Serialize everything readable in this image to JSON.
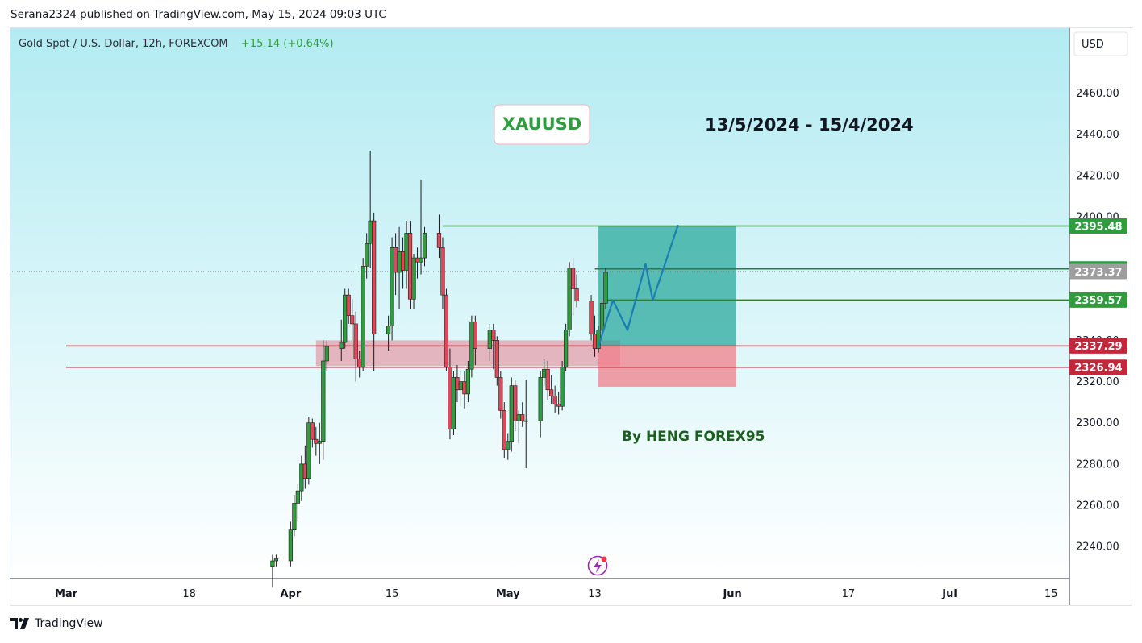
{
  "publisher_line": "Serana2324 published on TradingView.com, May 15, 2024 09:03 UTC",
  "footer": {
    "logo_text": "TradingView",
    "logo_icon": "tradingview-logo-icon"
  },
  "symbol_info": {
    "name": "Gold Spot / U.S. Dollar, 12h, FOREXCOM",
    "change": "+15.14 (+0.64%)"
  },
  "currency_button": "USD",
  "annotations": {
    "ticker_box": "XAUUSD",
    "date_range": "13/5/2024 - 15/4/2024",
    "author": "By HENG FOREX95"
  },
  "colors": {
    "bull": "#2e9c3f",
    "bear": "#e0475b",
    "background_top": "#b2ebf2",
    "background_bottom": "#ffffff",
    "tp_zone": "#26a69a",
    "sl_zone": "#f07f8a",
    "support_zone": "#e57f8e",
    "ticker_text": "#2e9c3f",
    "projection": "#1a7fb0"
  },
  "chart_data": {
    "type": "candlestick",
    "ylim": [
      2220,
      2488
    ],
    "y_ticks": [
      2240,
      2260,
      2280,
      2300,
      2320,
      2340,
      2400,
      2420,
      2440,
      2460
    ],
    "y_tick_labels": [
      "2240.00",
      "2260.00",
      "2280.00",
      "2300.00",
      "2320.00",
      "2340.00",
      "2400.00",
      "2420.00",
      "2440.00",
      "2460.00"
    ],
    "x_ticks": [
      {
        "label": "Mar",
        "date": "2024-03-01"
      },
      {
        "label": "18",
        "date": "2024-03-18"
      },
      {
        "label": "Apr",
        "date": "2024-04-01"
      },
      {
        "label": "15",
        "date": "2024-04-15"
      },
      {
        "label": "May",
        "date": "2024-05-01"
      },
      {
        "label": "13",
        "date": "2024-05-13"
      },
      {
        "label": "Jun",
        "date": "2024-06-01"
      },
      {
        "label": "17",
        "date": "2024-06-17"
      },
      {
        "label": "Jul",
        "date": "2024-07-01"
      },
      {
        "label": "15",
        "date": "2024-07-15"
      }
    ],
    "price_labels": [
      {
        "value": 2395.48,
        "text": "2395.48",
        "color": "#2e9c3f"
      },
      {
        "value": 2374.67,
        "text": "2374.67",
        "color": "#2e9c3f"
      },
      {
        "value": 2373.37,
        "text": "2373.37",
        "color": "#9e9e9e"
      },
      {
        "value": 2359.57,
        "text": "2359.57",
        "color": "#2e9c3f"
      },
      {
        "value": 2337.29,
        "text": "2337.29",
        "color": "#c2283a"
      },
      {
        "value": 2326.94,
        "text": "2326.94",
        "color": "#c2283a"
      }
    ],
    "horizontal_lines": [
      {
        "value": 2395.48,
        "color": "#2e7d32",
        "from_date": "2024-04-22 00:00"
      },
      {
        "value": 2374.67,
        "color": "#2e7d32",
        "from_date": "2024-05-13 00:00"
      },
      {
        "value": 2359.57,
        "color": "#2e7d32",
        "from_date": "2024-05-14 12:00"
      },
      {
        "value": 2337.29,
        "color": "#c2283a",
        "from_date": "2024-03-01"
      },
      {
        "value": 2326.94,
        "color": "#c2283a",
        "from_date": "2024-03-01"
      }
    ],
    "last_price": 2373.37,
    "support_zone": {
      "y_low": 2327.5,
      "y_high": 2340,
      "from_date": "2024-04-04 12:00",
      "to_date": "2024-05-16 12:00"
    },
    "position": {
      "from_date": "2024-05-13 12:00",
      "to_date": "2024-06-01 12:00",
      "entry": 2337.29,
      "target": 2395.48,
      "stop": 2317.5
    },
    "projection": [
      {
        "date": "2024-05-13 12:00",
        "price": 2337.0
      },
      {
        "date": "2024-05-15 12:00",
        "price": 2359.5
      },
      {
        "date": "2024-05-17 12:00",
        "price": 2345.0
      },
      {
        "date": "2024-05-20 00:00",
        "price": 2377.0
      },
      {
        "date": "2024-05-21 00:00",
        "price": 2359.5
      },
      {
        "date": "2024-05-24 12:00",
        "price": 2396.0
      }
    ],
    "candles": [
      {
        "date": "2024-03-29 12:00",
        "o": 2230,
        "h": 2236,
        "l": 2220,
        "c": 2233
      },
      {
        "date": "2024-03-30 00:00",
        "o": 2233,
        "h": 2236,
        "l": 2230,
        "c": 2234
      },
      {
        "date": "2024-04-01 00:00",
        "o": 2233,
        "h": 2252,
        "l": 2230,
        "c": 2248
      },
      {
        "date": "2024-04-01 12:00",
        "o": 2248,
        "h": 2265,
        "l": 2245,
        "c": 2261
      },
      {
        "date": "2024-04-02 00:00",
        "o": 2261,
        "h": 2270,
        "l": 2252,
        "c": 2267
      },
      {
        "date": "2024-04-02 12:00",
        "o": 2267,
        "h": 2284,
        "l": 2262,
        "c": 2280
      },
      {
        "date": "2024-04-03 00:00",
        "o": 2280,
        "h": 2289,
        "l": 2268,
        "c": 2273
      },
      {
        "date": "2024-04-03 12:00",
        "o": 2273,
        "h": 2303,
        "l": 2270,
        "c": 2300
      },
      {
        "date": "2024-04-04 00:00",
        "o": 2300,
        "h": 2302,
        "l": 2288,
        "c": 2292
      },
      {
        "date": "2024-04-04 12:00",
        "o": 2292,
        "h": 2298,
        "l": 2284,
        "c": 2290
      },
      {
        "date": "2024-04-05 00:00",
        "o": 2290,
        "h": 2300,
        "l": 2280,
        "c": 2291
      },
      {
        "date": "2024-04-05 12:00",
        "o": 2291,
        "h": 2340,
        "l": 2282,
        "c": 2330
      },
      {
        "date": "2024-04-06 00:00",
        "o": 2330,
        "h": 2340,
        "l": 2325,
        "c": 2337
      },
      {
        "date": "2024-04-08 00:00",
        "o": 2336,
        "h": 2350,
        "l": 2330,
        "c": 2339
      },
      {
        "date": "2024-04-08 12:00",
        "o": 2339,
        "h": 2365,
        "l": 2336,
        "c": 2362
      },
      {
        "date": "2024-04-09 00:00",
        "o": 2362,
        "h": 2365,
        "l": 2348,
        "c": 2352
      },
      {
        "date": "2024-04-09 12:00",
        "o": 2352,
        "h": 2360,
        "l": 2340,
        "c": 2348
      },
      {
        "date": "2024-04-10 00:00",
        "o": 2348,
        "h": 2354,
        "l": 2320,
        "c": 2331
      },
      {
        "date": "2024-04-10 12:00",
        "o": 2331,
        "h": 2335,
        "l": 2322,
        "c": 2327
      },
      {
        "date": "2024-04-11 00:00",
        "o": 2327,
        "h": 2380,
        "l": 2325,
        "c": 2376
      },
      {
        "date": "2024-04-11 12:00",
        "o": 2376,
        "h": 2392,
        "l": 2370,
        "c": 2387
      },
      {
        "date": "2024-04-12 00:00",
        "o": 2387,
        "h": 2432,
        "l": 2375,
        "c": 2398
      },
      {
        "date": "2024-04-12 12:00",
        "o": 2398,
        "h": 2402,
        "l": 2325,
        "c": 2343
      },
      {
        "date": "2024-04-14 12:00",
        "o": 2343,
        "h": 2352,
        "l": 2335,
        "c": 2347
      },
      {
        "date": "2024-04-15 00:00",
        "o": 2347,
        "h": 2390,
        "l": 2340,
        "c": 2385
      },
      {
        "date": "2024-04-15 12:00",
        "o": 2385,
        "h": 2392,
        "l": 2362,
        "c": 2373
      },
      {
        "date": "2024-04-16 00:00",
        "o": 2373,
        "h": 2395,
        "l": 2355,
        "c": 2383
      },
      {
        "date": "2024-04-16 12:00",
        "o": 2383,
        "h": 2390,
        "l": 2365,
        "c": 2374
      },
      {
        "date": "2024-04-17 00:00",
        "o": 2374,
        "h": 2398,
        "l": 2365,
        "c": 2392
      },
      {
        "date": "2024-04-17 12:00",
        "o": 2392,
        "h": 2398,
        "l": 2355,
        "c": 2360
      },
      {
        "date": "2024-04-18 00:00",
        "o": 2360,
        "h": 2382,
        "l": 2355,
        "c": 2380
      },
      {
        "date": "2024-04-18 12:00",
        "o": 2380,
        "h": 2385,
        "l": 2370,
        "c": 2378
      },
      {
        "date": "2024-04-19 00:00",
        "o": 2378,
        "h": 2418,
        "l": 2372,
        "c": 2380
      },
      {
        "date": "2024-04-19 12:00",
        "o": 2380,
        "h": 2395,
        "l": 2376,
        "c": 2392
      },
      {
        "date": "2024-04-21 12:00",
        "o": 2392,
        "h": 2401,
        "l": 2380,
        "c": 2385
      },
      {
        "date": "2024-04-22 00:00",
        "o": 2385,
        "h": 2390,
        "l": 2355,
        "c": 2362
      },
      {
        "date": "2024-04-22 12:00",
        "o": 2362,
        "h": 2365,
        "l": 2325,
        "c": 2327
      },
      {
        "date": "2024-04-23 00:00",
        "o": 2327,
        "h": 2336,
        "l": 2292,
        "c": 2297
      },
      {
        "date": "2024-04-23 12:00",
        "o": 2297,
        "h": 2325,
        "l": 2294,
        "c": 2322
      },
      {
        "date": "2024-04-24 00:00",
        "o": 2322,
        "h": 2328,
        "l": 2310,
        "c": 2316
      },
      {
        "date": "2024-04-24 12:00",
        "o": 2316,
        "h": 2325,
        "l": 2308,
        "c": 2320
      },
      {
        "date": "2024-04-25 00:00",
        "o": 2320,
        "h": 2325,
        "l": 2307,
        "c": 2314
      },
      {
        "date": "2024-04-25 12:00",
        "o": 2314,
        "h": 2330,
        "l": 2310,
        "c": 2326
      },
      {
        "date": "2024-04-26 00:00",
        "o": 2326,
        "h": 2352,
        "l": 2322,
        "c": 2349
      },
      {
        "date": "2024-04-26 12:00",
        "o": 2349,
        "h": 2352,
        "l": 2328,
        "c": 2336
      },
      {
        "date": "2024-04-28 12:00",
        "o": 2336,
        "h": 2348,
        "l": 2330,
        "c": 2345
      },
      {
        "date": "2024-04-29 00:00",
        "o": 2345,
        "h": 2348,
        "l": 2326,
        "c": 2340
      },
      {
        "date": "2024-04-29 12:00",
        "o": 2340,
        "h": 2342,
        "l": 2318,
        "c": 2322
      },
      {
        "date": "2024-04-30 00:00",
        "o": 2322,
        "h": 2325,
        "l": 2302,
        "c": 2306
      },
      {
        "date": "2024-04-30 12:00",
        "o": 2306,
        "h": 2310,
        "l": 2283,
        "c": 2287
      },
      {
        "date": "2024-05-01 00:00",
        "o": 2287,
        "h": 2295,
        "l": 2282,
        "c": 2291
      },
      {
        "date": "2024-05-01 12:00",
        "o": 2291,
        "h": 2322,
        "l": 2286,
        "c": 2318
      },
      {
        "date": "2024-05-02 00:00",
        "o": 2318,
        "h": 2321,
        "l": 2296,
        "c": 2301
      },
      {
        "date": "2024-05-02 12:00",
        "o": 2301,
        "h": 2306,
        "l": 2290,
        "c": 2304
      },
      {
        "date": "2024-05-03 00:00",
        "o": 2304,
        "h": 2310,
        "l": 2298,
        "c": 2301
      },
      {
        "date": "2024-05-03 12:00",
        "o": 2301,
        "h": 2321,
        "l": 2278,
        "c": 2301
      },
      {
        "date": "2024-05-05 12:00",
        "o": 2301,
        "h": 2325,
        "l": 2293,
        "c": 2322
      },
      {
        "date": "2024-05-06 00:00",
        "o": 2322,
        "h": 2331,
        "l": 2318,
        "c": 2326
      },
      {
        "date": "2024-05-06 12:00",
        "o": 2326,
        "h": 2330,
        "l": 2311,
        "c": 2316
      },
      {
        "date": "2024-05-07 00:00",
        "o": 2316,
        "h": 2323,
        "l": 2309,
        "c": 2313
      },
      {
        "date": "2024-05-07 12:00",
        "o": 2313,
        "h": 2318,
        "l": 2305,
        "c": 2309
      },
      {
        "date": "2024-05-08 00:00",
        "o": 2309,
        "h": 2315,
        "l": 2304,
        "c": 2308
      },
      {
        "date": "2024-05-08 12:00",
        "o": 2308,
        "h": 2330,
        "l": 2306,
        "c": 2327
      },
      {
        "date": "2024-05-09 00:00",
        "o": 2327,
        "h": 2348,
        "l": 2325,
        "c": 2345
      },
      {
        "date": "2024-05-09 12:00",
        "o": 2345,
        "h": 2378,
        "l": 2342,
        "c": 2375
      },
      {
        "date": "2024-05-10 00:00",
        "o": 2375,
        "h": 2380,
        "l": 2352,
        "c": 2365
      },
      {
        "date": "2024-05-10 12:00",
        "o": 2365,
        "h": 2372,
        "l": 2356,
        "c": 2359
      },
      {
        "date": "2024-05-12 12:00",
        "o": 2359,
        "h": 2362,
        "l": 2340,
        "c": 2343
      },
      {
        "date": "2024-05-13 00:00",
        "o": 2343,
        "h": 2352,
        "l": 2332,
        "c": 2336
      },
      {
        "date": "2024-05-13 12:00",
        "o": 2336,
        "h": 2347,
        "l": 2334,
        "c": 2345
      },
      {
        "date": "2024-05-14 00:00",
        "o": 2345,
        "h": 2360,
        "l": 2343,
        "c": 2358
      },
      {
        "date": "2024-05-14 12:00",
        "o": 2358,
        "h": 2375,
        "l": 2355,
        "c": 2373
      }
    ]
  }
}
